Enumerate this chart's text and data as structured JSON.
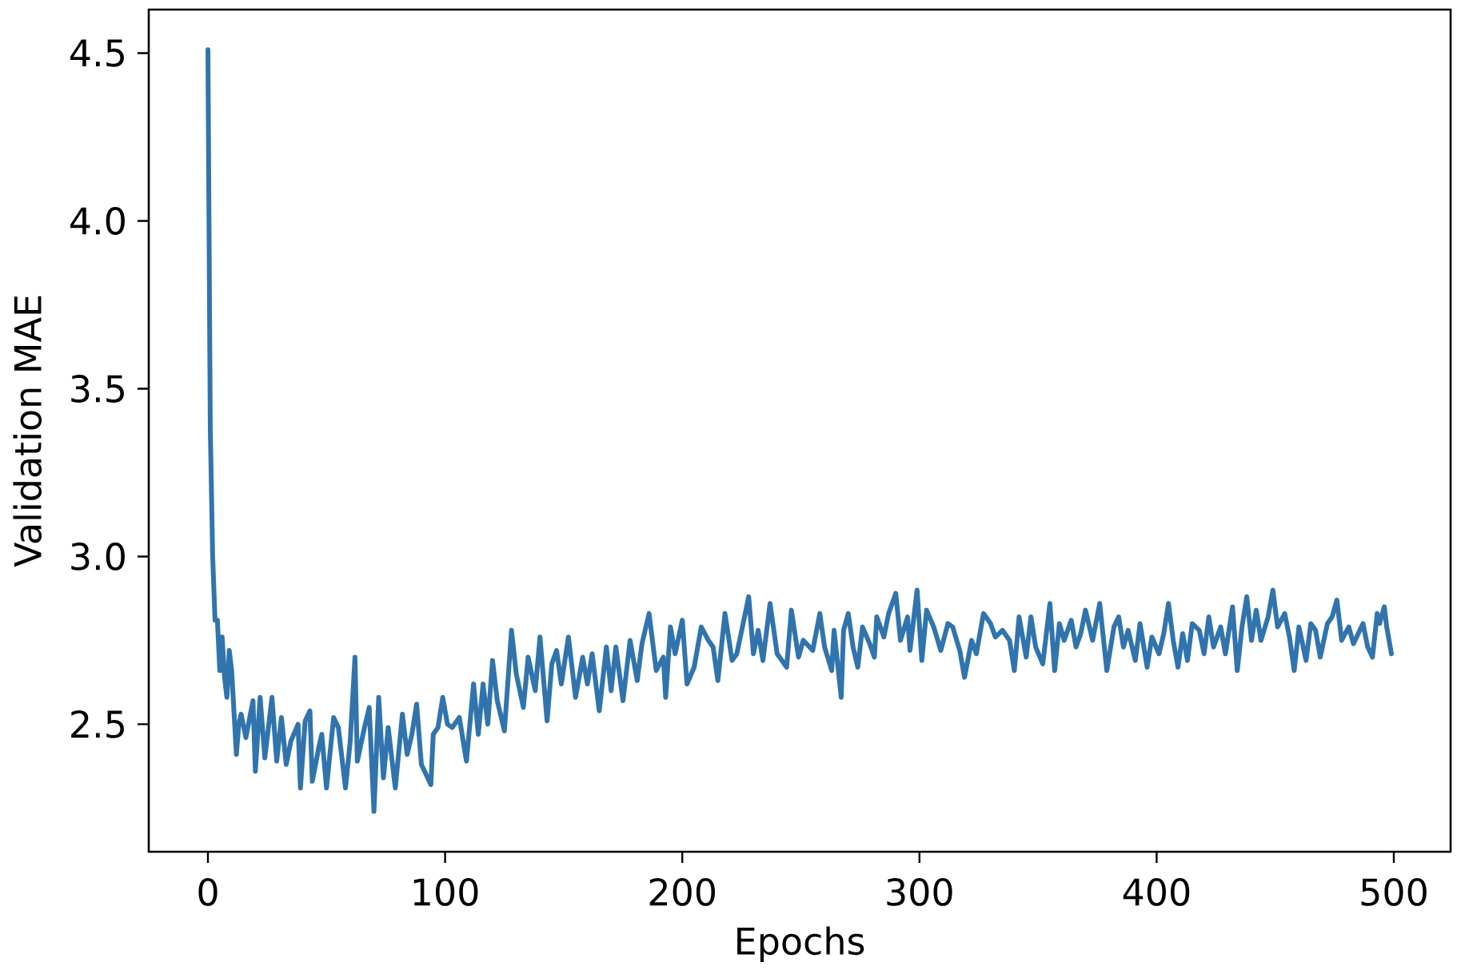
{
  "chart_data": {
    "type": "line",
    "xlabel": "Epochs",
    "ylabel": "Validation MAE",
    "color": "#3174ad",
    "xlim": [
      -24.95,
      523.95
    ],
    "ylim": [
      2.12,
      4.63
    ],
    "xticks": [
      0,
      100,
      200,
      300,
      400,
      500
    ],
    "yticks": [
      {
        "value": 2.5,
        "label": "2.5"
      },
      {
        "value": 3.0,
        "label": "3.0"
      },
      {
        "value": 3.5,
        "label": "3.5"
      },
      {
        "value": 4.0,
        "label": "4.0"
      },
      {
        "value": 4.5,
        "label": "4.5"
      }
    ],
    "x": [
      0,
      1,
      2,
      3,
      4,
      5,
      6,
      7,
      8,
      9,
      10,
      12,
      13,
      14,
      16,
      19,
      20,
      22,
      24,
      27,
      29,
      31,
      33,
      35,
      38,
      39,
      41,
      43,
      44,
      47,
      48,
      50,
      53,
      55,
      58,
      60,
      62,
      63,
      66,
      68,
      70,
      72,
      74,
      76,
      79,
      82,
      84,
      86,
      88,
      90,
      94,
      95,
      97,
      99,
      101,
      103,
      106,
      109,
      112,
      114,
      116,
      118,
      120,
      122,
      125,
      128,
      130,
      133,
      135,
      138,
      140,
      143,
      145,
      147,
      149,
      152,
      155,
      158,
      160,
      162,
      165,
      168,
      170,
      172,
      175,
      178,
      181,
      183,
      186,
      189,
      192,
      193,
      195,
      197,
      200,
      202,
      205,
      208,
      211,
      213,
      215,
      218,
      221,
      223,
      228,
      230,
      232,
      234,
      237,
      240,
      244,
      246,
      249,
      251,
      255,
      258,
      260,
      263,
      264,
      267,
      268,
      270,
      272,
      274,
      276,
      279,
      281,
      282,
      285,
      287,
      290,
      292,
      295,
      296,
      299,
      301,
      303,
      306,
      309,
      312,
      314,
      317,
      319,
      322,
      324,
      327,
      330,
      332,
      335,
      338,
      340,
      342,
      345,
      347,
      349,
      352,
      355,
      357,
      359,
      361,
      364,
      366,
      368,
      370,
      373,
      376,
      379,
      382,
      384,
      386,
      388,
      391,
      393,
      396,
      398,
      401,
      403,
      405,
      407,
      409,
      411,
      413,
      415,
      418,
      420,
      422,
      424,
      427,
      429,
      432,
      434,
      436,
      438,
      440,
      442,
      444,
      447,
      449,
      451,
      454,
      456,
      458,
      460,
      463,
      465,
      467,
      469,
      472,
      474,
      476,
      478,
      481,
      483,
      485,
      487,
      489,
      491,
      493,
      494,
      496,
      497,
      499
    ],
    "values": [
      4.51,
      3.38,
      3.0,
      2.81,
      2.81,
      2.66,
      2.76,
      2.64,
      2.58,
      2.72,
      2.66,
      2.41,
      2.5,
      2.53,
      2.46,
      2.57,
      2.36,
      2.58,
      2.4,
      2.58,
      2.39,
      2.52,
      2.38,
      2.45,
      2.5,
      2.31,
      2.51,
      2.54,
      2.33,
      2.44,
      2.47,
      2.31,
      2.52,
      2.49,
      2.31,
      2.45,
      2.7,
      2.39,
      2.49,
      2.55,
      2.24,
      2.58,
      2.34,
      2.49,
      2.31,
      2.53,
      2.41,
      2.47,
      2.56,
      2.38,
      2.32,
      2.47,
      2.49,
      2.58,
      2.5,
      2.49,
      2.52,
      2.39,
      2.62,
      2.47,
      2.62,
      2.5,
      2.69,
      2.57,
      2.48,
      2.78,
      2.65,
      2.55,
      2.7,
      2.6,
      2.76,
      2.51,
      2.68,
      2.72,
      2.62,
      2.76,
      2.58,
      2.7,
      2.62,
      2.71,
      2.54,
      2.73,
      2.6,
      2.73,
      2.57,
      2.75,
      2.63,
      2.74,
      2.83,
      2.66,
      2.7,
      2.58,
      2.79,
      2.71,
      2.81,
      2.62,
      2.67,
      2.79,
      2.75,
      2.73,
      2.63,
      2.83,
      2.69,
      2.71,
      2.88,
      2.71,
      2.78,
      2.69,
      2.86,
      2.71,
      2.67,
      2.84,
      2.7,
      2.75,
      2.72,
      2.83,
      2.73,
      2.66,
      2.78,
      2.58,
      2.78,
      2.83,
      2.73,
      2.67,
      2.79,
      2.74,
      2.7,
      2.82,
      2.76,
      2.83,
      2.89,
      2.75,
      2.82,
      2.72,
      2.9,
      2.69,
      2.84,
      2.79,
      2.72,
      2.8,
      2.79,
      2.72,
      2.64,
      2.75,
      2.71,
      2.83,
      2.8,
      2.76,
      2.78,
      2.75,
      2.66,
      2.82,
      2.7,
      2.82,
      2.73,
      2.68,
      2.86,
      2.66,
      2.8,
      2.75,
      2.81,
      2.73,
      2.77,
      2.84,
      2.75,
      2.86,
      2.66,
      2.79,
      2.82,
      2.73,
      2.78,
      2.69,
      2.8,
      2.67,
      2.76,
      2.71,
      2.77,
      2.86,
      2.75,
      2.67,
      2.77,
      2.69,
      2.8,
      2.78,
      2.71,
      2.82,
      2.73,
      2.79,
      2.71,
      2.85,
      2.66,
      2.79,
      2.88,
      2.75,
      2.84,
      2.75,
      2.82,
      2.9,
      2.79,
      2.83,
      2.76,
      2.66,
      2.79,
      2.69,
      2.8,
      2.78,
      2.7,
      2.8,
      2.82,
      2.87,
      2.75,
      2.79,
      2.74,
      2.77,
      2.8,
      2.73,
      2.7,
      2.83,
      2.8,
      2.85,
      2.79,
      2.71
    ]
  }
}
